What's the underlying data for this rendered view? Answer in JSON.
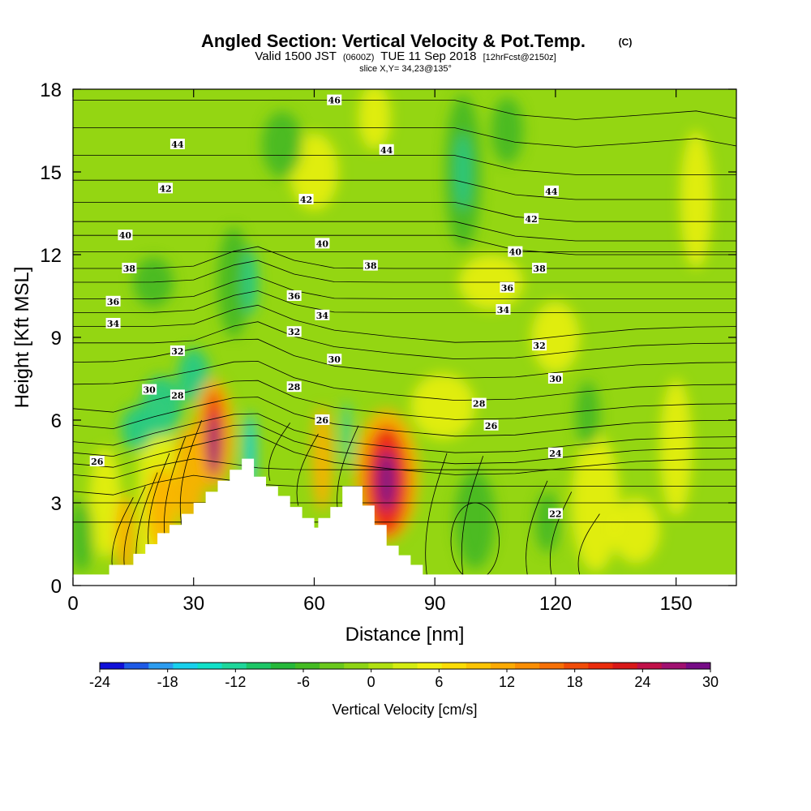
{
  "chart_data": {
    "type": "heatmap",
    "title": "Angled Section: Vertical Velocity & Pot.Temp.",
    "title_unit": "(C)",
    "subtitle": {
      "prefix": "Valid 1500 JST",
      "utc": "(0600Z)",
      "date": "TUE 11 Sep 2018",
      "forecast": "[12hrFcst@2150z]"
    },
    "slice_label": "slice X,Y= 34,23@135°",
    "xlabel": "Distance [nm]",
    "ylabel": "Height [Kft MSL]",
    "xlim": [
      0,
      165
    ],
    "ylim": [
      0,
      18
    ],
    "xticks": [
      "0",
      "30",
      "60",
      "90",
      "120",
      "150"
    ],
    "yticks": [
      "0",
      "3",
      "6",
      "9",
      "12",
      "15",
      "18"
    ],
    "colorbar": {
      "label": "Vertical Velocity [cm/s]",
      "range": [
        -24,
        30
      ],
      "ticks": [
        "-24",
        "-18",
        "-12",
        "-6",
        "0",
        "6",
        "12",
        "18",
        "24",
        "30"
      ],
      "colors": [
        "#1010d8",
        "#1e5ae6",
        "#2c9cf0",
        "#18d0ec",
        "#10e0c8",
        "#1ed69a",
        "#1cc666",
        "#26b83a",
        "#44bb22",
        "#6ac81c",
        "#8ed414",
        "#b0e010",
        "#d4ec12",
        "#f0f010",
        "#fcdc06",
        "#fcc404",
        "#fcaa04",
        "#fa8e04",
        "#f67006",
        "#f04c08",
        "#ea2c0c",
        "#d81818",
        "#c01048",
        "#a01070",
        "#760c86"
      ]
    },
    "background_colors": {
      "base": "#94d612",
      "yellow": "#e6ef0c",
      "dark_green": "#44b824",
      "teal": "#22c986",
      "cyan": "#18d0ec",
      "orange": "#fcb003",
      "red": "#ec240e",
      "purple": "#78128a"
    },
    "terrain": [
      [
        0,
        0.4
      ],
      [
        9,
        0.4
      ],
      [
        9,
        0.75
      ],
      [
        15,
        0.75
      ],
      [
        15,
        1.15
      ],
      [
        18,
        1.15
      ],
      [
        18,
        1.5
      ],
      [
        21,
        1.5
      ],
      [
        21,
        1.9
      ],
      [
        24,
        1.9
      ],
      [
        24,
        2.2
      ],
      [
        27,
        2.2
      ],
      [
        27,
        2.6
      ],
      [
        30,
        2.6
      ],
      [
        30,
        3.0
      ],
      [
        33,
        3.0
      ],
      [
        33,
        3.4
      ],
      [
        36,
        3.4
      ],
      [
        36,
        3.8
      ],
      [
        39,
        3.8
      ],
      [
        39,
        4.2
      ],
      [
        42,
        4.2
      ],
      [
        42,
        4.6
      ],
      [
        45,
        4.6
      ],
      [
        45,
        3.95
      ],
      [
        48,
        3.95
      ],
      [
        48,
        3.6
      ],
      [
        51,
        3.6
      ],
      [
        51,
        3.25
      ],
      [
        54,
        3.25
      ],
      [
        54,
        2.85
      ],
      [
        57,
        2.85
      ],
      [
        57,
        2.45
      ],
      [
        60,
        2.45
      ],
      [
        60,
        2.1
      ],
      [
        61,
        2.1
      ],
      [
        61,
        2.45
      ],
      [
        64,
        2.45
      ],
      [
        64,
        2.85
      ],
      [
        67,
        2.85
      ],
      [
        67,
        3.6
      ],
      [
        72,
        3.6
      ],
      [
        72,
        2.9
      ],
      [
        75,
        2.9
      ],
      [
        75,
        2.2
      ],
      [
        78,
        2.2
      ],
      [
        78,
        1.45
      ],
      [
        81,
        1.45
      ],
      [
        81,
        1.1
      ],
      [
        84,
        1.1
      ],
      [
        84,
        0.75
      ],
      [
        87,
        0.75
      ],
      [
        87,
        0.4
      ],
      [
        165,
        0.4
      ]
    ],
    "isentropes": {
      "levels": [
        22,
        23,
        24,
        25,
        26,
        27,
        28,
        29,
        30,
        31,
        32,
        33,
        34,
        35,
        36,
        37,
        38,
        39,
        40,
        41,
        42,
        43,
        44,
        45,
        46
      ],
      "labels": [
        {
          "text": "46",
          "x": 65,
          "y": 17.6
        },
        {
          "text": "44",
          "x": 26,
          "y": 16.0
        },
        {
          "text": "44",
          "x": 78,
          "y": 15.8
        },
        {
          "text": "44",
          "x": 119,
          "y": 14.3
        },
        {
          "text": "42",
          "x": 23,
          "y": 14.4
        },
        {
          "text": "42",
          "x": 58,
          "y": 14.0
        },
        {
          "text": "42",
          "x": 114,
          "y": 13.3
        },
        {
          "text": "40",
          "x": 13,
          "y": 12.7
        },
        {
          "text": "40",
          "x": 62,
          "y": 12.4
        },
        {
          "text": "40",
          "x": 110,
          "y": 12.1
        },
        {
          "text": "38",
          "x": 14,
          "y": 11.5
        },
        {
          "text": "38",
          "x": 74,
          "y": 11.6
        },
        {
          "text": "38",
          "x": 116,
          "y": 11.5
        },
        {
          "text": "36",
          "x": 10,
          "y": 10.3
        },
        {
          "text": "36",
          "x": 55,
          "y": 10.5
        },
        {
          "text": "36",
          "x": 108,
          "y": 10.8
        },
        {
          "text": "34",
          "x": 10,
          "y": 9.5
        },
        {
          "text": "34",
          "x": 62,
          "y": 9.8
        },
        {
          "text": "34",
          "x": 107,
          "y": 10.0
        },
        {
          "text": "32",
          "x": 26,
          "y": 8.5
        },
        {
          "text": "32",
          "x": 55,
          "y": 9.2
        },
        {
          "text": "32",
          "x": 116,
          "y": 8.7
        },
        {
          "text": "30",
          "x": 19,
          "y": 7.1
        },
        {
          "text": "30",
          "x": 65,
          "y": 8.2
        },
        {
          "text": "30",
          "x": 120,
          "y": 7.5
        },
        {
          "text": "28",
          "x": 26,
          "y": 6.9
        },
        {
          "text": "28",
          "x": 55,
          "y": 7.2
        },
        {
          "text": "28",
          "x": 101,
          "y": 6.6
        },
        {
          "text": "26",
          "x": 6,
          "y": 4.5
        },
        {
          "text": "26",
          "x": 62,
          "y": 6.0
        },
        {
          "text": "26",
          "x": 104,
          "y": 5.8
        },
        {
          "text": "24",
          "x": 120,
          "y": 4.8
        },
        {
          "text": "22",
          "x": 120,
          "y": 2.6
        }
      ]
    }
  }
}
